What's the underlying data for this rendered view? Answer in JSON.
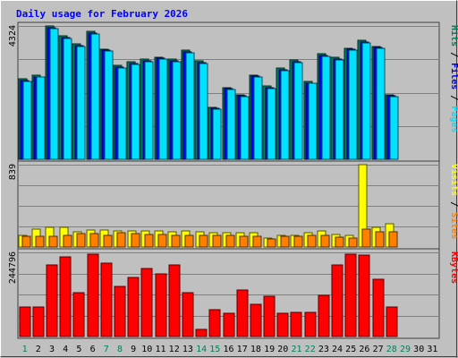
{
  "colors": {
    "background": "#c0c0c0",
    "border_dark": "#404040",
    "border_light": "#ffffff",
    "title": "#0000ff",
    "hits_fill": "#00805c",
    "files_fill": "#0000ff",
    "pages_fill": "#00e0ff",
    "visits_fill": "#ffff00",
    "sites_fill": "#ff8000",
    "kbytes_fill": "#ff0000",
    "weekday_label": "#000000",
    "weekend_label": "#00805c"
  },
  "chart_data": {
    "type": "bar",
    "title": "Daily usage for February 2026",
    "x": [
      "1",
      "2",
      "3",
      "4",
      "5",
      "6",
      "7",
      "8",
      "9",
      "10",
      "11",
      "12",
      "13",
      "14",
      "15",
      "16",
      "17",
      "18",
      "19",
      "20",
      "21",
      "22",
      "23",
      "24",
      "25",
      "26",
      "27",
      "28",
      "29",
      "30",
      "31"
    ],
    "weekend_days": [
      "1",
      "7",
      "8",
      "14",
      "15",
      "21",
      "22",
      "28",
      "29"
    ],
    "panels": [
      {
        "name": "hits_files_pages",
        "ymax": 4324,
        "ymax_label": "4324",
        "legend": [
          "Pages",
          "Files",
          "Hits"
        ],
        "series": [
          {
            "name": "Hits",
            "key": "hits_fill",
            "values": [
              2600,
              2720,
              4324,
              4000,
              3740,
              4140,
              3570,
              3050,
              3150,
              3240,
              3320,
              3250,
              3530,
              3190,
              1690,
              2320,
              2100,
              2730,
              2370,
              2950,
              3210,
              2530,
              3430,
              3300,
              3600,
              3860,
              3670,
              2100,
              0,
              0,
              0
            ]
          },
          {
            "name": "Files",
            "key": "files_fill",
            "values": [
              2560,
              2680,
              4270,
              3960,
              3700,
              4090,
              3530,
              3000,
              3100,
              3190,
              3270,
              3200,
              3480,
              3140,
              1650,
              2280,
              2050,
              2690,
              2330,
              2910,
              3170,
              2480,
              3380,
              3250,
              3560,
              3810,
              3620,
              2060,
              0,
              0,
              0
            ]
          },
          {
            "name": "Pages",
            "key": "pages_fill",
            "values": [
              2530,
              2660,
              4240,
              3930,
              3670,
              4060,
              3500,
              2970,
              3070,
              3170,
              3240,
              3170,
              3450,
              3110,
              1620,
              2250,
              2030,
              2660,
              2300,
              2880,
              3140,
              2460,
              3350,
              3220,
              3530,
              3780,
              3590,
              2030,
              0,
              0,
              0
            ]
          }
        ]
      },
      {
        "name": "visits_sites",
        "ymax": 839,
        "ymax_label": "839",
        "legend": [
          "Sites",
          "Visits"
        ],
        "series": [
          {
            "name": "Visits",
            "key": "visits_fill",
            "values": [
              115,
              185,
              205,
              205,
              155,
              170,
              170,
              160,
              160,
              160,
              160,
              155,
              160,
              155,
              145,
              150,
              150,
              150,
              95,
              120,
              120,
              150,
              160,
              130,
              120,
              839,
              200,
              240,
              0,
              0,
              0
            ]
          },
          {
            "name": "Sites",
            "key": "sites_fill",
            "values": [
              105,
              110,
              105,
              115,
              140,
              140,
              115,
              145,
              135,
              130,
              130,
              120,
              120,
              120,
              115,
              115,
              105,
              110,
              85,
              110,
              110,
              115,
              120,
              100,
              95,
              180,
              155,
              155,
              0,
              0,
              0
            ]
          }
        ]
      },
      {
        "name": "kbytes",
        "ymax": 244796,
        "ymax_label": "244796",
        "legend": [
          "KBytes"
        ],
        "series": [
          {
            "name": "KBytes",
            "key": "kbytes_fill",
            "values": [
              85000,
              85000,
              208000,
              232000,
              127000,
              240000,
              213000,
              147000,
              173000,
              197000,
              182000,
              209000,
              127000,
              22000,
              78000,
              68000,
              135000,
              95000,
              118000,
              67000,
              71000,
              71000,
              120000,
              208000,
              239000,
              236000,
              166000,
              87000,
              0,
              0,
              0
            ]
          }
        ]
      }
    ]
  }
}
